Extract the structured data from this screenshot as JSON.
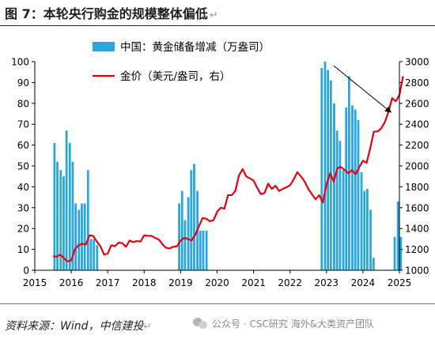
{
  "figure_title": "图 7：本轮央行购金的规模整体偏低",
  "return_mark": "↵",
  "source": "资料来源：Wind，中信建投",
  "watermark": "公众号 · CSC研究 海外&大类资产团队",
  "colors": {
    "bars": "#2aa6dd",
    "line": "#e6000f"
  },
  "chart_data": {
    "type": "bar",
    "legend_position": "top-center",
    "grid": false,
    "x_tick_labels": [
      "2015",
      "2016",
      "2017",
      "2018",
      "2019",
      "2020",
      "2021",
      "2022",
      "2023",
      "2024",
      "2025"
    ],
    "y_left_ticks": [
      "0",
      "10",
      "20",
      "30",
      "40",
      "50",
      "60",
      "70",
      "80",
      "90",
      "100"
    ],
    "y_right_ticks": [
      "1000",
      "1200",
      "1400",
      "1600",
      "1800",
      "2000",
      "2200",
      "2400",
      "2600",
      "2800",
      "3000"
    ],
    "ylim_left": [
      0,
      100
    ],
    "ylim_right": [
      1000,
      3000
    ],
    "xlim": [
      2015,
      2025
    ],
    "series": [
      {
        "name": "中国：黄金储备增减（万盎司）",
        "type": "bar",
        "axis": "left",
        "x": [
          2015.54,
          2015.62,
          2015.71,
          2015.79,
          2015.87,
          2015.96,
          2016.04,
          2016.12,
          2016.21,
          2016.29,
          2016.37,
          2016.46,
          2016.54,
          2016.62,
          2016.71,
          2018.96,
          2019.04,
          2019.12,
          2019.21,
          2019.29,
          2019.37,
          2019.46,
          2019.54,
          2019.62,
          2019.71,
          2022.87,
          2022.96,
          2023.04,
          2023.12,
          2023.21,
          2023.29,
          2023.37,
          2023.46,
          2023.54,
          2023.62,
          2023.71,
          2023.79,
          2023.87,
          2023.96,
          2024.04,
          2024.12,
          2024.21,
          2024.29,
          2024.87,
          2024.96,
          2025.04
        ],
        "values": [
          61,
          52,
          48,
          45,
          67,
          61,
          52,
          32,
          29,
          32,
          32,
          48,
          15,
          15,
          12,
          32,
          38,
          24,
          35,
          48,
          51,
          38,
          19,
          19,
          19,
          97,
          100,
          96,
          91,
          80,
          67,
          62,
          48,
          78,
          93,
          79,
          77,
          72,
          47,
          38,
          39,
          29,
          6,
          16,
          33,
          16
        ]
      },
      {
        "name": "金价（美元/盎司，右）",
        "type": "line",
        "axis": "right",
        "x": [
          2015.5,
          2015.6,
          2015.7,
          2015.8,
          2015.9,
          2016.0,
          2016.1,
          2016.2,
          2016.3,
          2016.4,
          2016.5,
          2016.6,
          2016.7,
          2016.8,
          2016.9,
          2017.0,
          2017.1,
          2017.2,
          2017.3,
          2017.4,
          2017.5,
          2017.6,
          2017.7,
          2017.8,
          2017.9,
          2018.0,
          2018.1,
          2018.2,
          2018.3,
          2018.4,
          2018.5,
          2018.6,
          2018.7,
          2018.8,
          2018.9,
          2019.0,
          2019.1,
          2019.2,
          2019.3,
          2019.4,
          2019.5,
          2019.6,
          2019.7,
          2019.8,
          2019.9,
          2020.0,
          2020.1,
          2020.2,
          2020.3,
          2020.4,
          2020.5,
          2020.6,
          2020.7,
          2020.8,
          2020.9,
          2021.0,
          2021.1,
          2021.2,
          2021.3,
          2021.4,
          2021.5,
          2021.6,
          2021.7,
          2021.8,
          2021.9,
          2022.0,
          2022.1,
          2022.2,
          2022.3,
          2022.4,
          2022.5,
          2022.6,
          2022.7,
          2022.8,
          2022.9,
          2023.0,
          2023.1,
          2023.2,
          2023.3,
          2023.4,
          2023.5,
          2023.6,
          2023.7,
          2023.8,
          2023.9,
          2024.0,
          2024.1,
          2024.2,
          2024.3,
          2024.4,
          2024.5,
          2024.6,
          2024.7,
          2024.8,
          2024.9,
          2025.0,
          2025.1
        ],
        "values": [
          1135,
          1130,
          1150,
          1115,
          1085,
          1095,
          1200,
          1240,
          1255,
          1245,
          1335,
          1330,
          1275,
          1230,
          1150,
          1160,
          1240,
          1230,
          1265,
          1260,
          1225,
          1285,
          1270,
          1280,
          1275,
          1335,
          1330,
          1330,
          1310,
          1295,
          1250,
          1215,
          1210,
          1225,
          1230,
          1285,
          1310,
          1300,
          1285,
          1340,
          1420,
          1500,
          1495,
          1470,
          1480,
          1560,
          1600,
          1590,
          1720,
          1720,
          1760,
          1910,
          1970,
          1900,
          1880,
          1860,
          1790,
          1730,
          1740,
          1830,
          1780,
          1810,
          1760,
          1780,
          1795,
          1815,
          1870,
          1940,
          1900,
          1850,
          1780,
          1730,
          1680,
          1720,
          1650,
          1820,
          1930,
          1850,
          1980,
          1990,
          1960,
          1930,
          1960,
          1920,
          1990,
          2050,
          2030,
          2170,
          2330,
          2330,
          2360,
          2420,
          2520,
          2650,
          2620,
          2680,
          2860
        ]
      }
    ],
    "arrow": {
      "from": [
        2023.2,
        98
      ],
      "to": [
        2024.75,
        76
      ]
    }
  }
}
